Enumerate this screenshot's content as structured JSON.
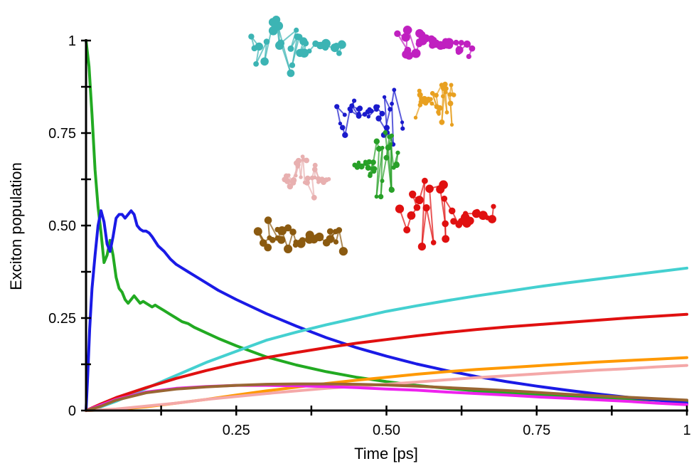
{
  "chart_data": {
    "type": "line",
    "title": "",
    "xlabel": "Time [ps]",
    "ylabel": "Exciton population",
    "xlim": [
      0,
      1
    ],
    "ylim": [
      0,
      1
    ],
    "xticks": [
      {
        "value": 0.25,
        "label": "0.25"
      },
      {
        "value": 0.5,
        "label": "0.50"
      },
      {
        "value": 0.75,
        "label": "0.75"
      },
      {
        "value": 1.0,
        "label": "1"
      }
    ],
    "yticks": [
      {
        "value": 0,
        "label": "0"
      },
      {
        "value": 0.25,
        "label": "0.25"
      },
      {
        "value": 0.5,
        "label": "0.50"
      },
      {
        "value": 0.75,
        "label": "0.75"
      },
      {
        "value": 1,
        "label": "1"
      }
    ],
    "grid": false,
    "legend": "none",
    "series": [
      {
        "color": "#22aa22",
        "x": [
          0,
          0.005,
          0.01,
          0.015,
          0.02,
          0.025,
          0.03,
          0.035,
          0.04,
          0.045,
          0.05,
          0.055,
          0.06,
          0.065,
          0.07,
          0.075,
          0.08,
          0.085,
          0.09,
          0.095,
          0.1,
          0.105,
          0.11,
          0.115,
          0.12,
          0.13,
          0.14,
          0.15,
          0.16,
          0.17,
          0.18,
          0.2,
          0.22,
          0.25,
          0.3,
          0.35,
          0.4,
          0.45,
          0.5,
          0.55,
          0.6,
          0.65,
          0.7,
          0.75,
          0.8,
          0.85,
          0.9,
          0.95,
          1.0
        ],
        "y": [
          1.0,
          0.93,
          0.8,
          0.65,
          0.55,
          0.48,
          0.4,
          0.42,
          0.46,
          0.42,
          0.36,
          0.33,
          0.32,
          0.3,
          0.29,
          0.3,
          0.31,
          0.3,
          0.29,
          0.295,
          0.29,
          0.285,
          0.28,
          0.285,
          0.28,
          0.27,
          0.26,
          0.25,
          0.24,
          0.235,
          0.225,
          0.21,
          0.195,
          0.175,
          0.145,
          0.123,
          0.105,
          0.09,
          0.078,
          0.068,
          0.06,
          0.053,
          0.047,
          0.042,
          0.038,
          0.034,
          0.031,
          0.028,
          0.025
        ]
      },
      {
        "color": "#1a1ae6",
        "x": [
          0,
          0.003,
          0.006,
          0.01,
          0.015,
          0.02,
          0.025,
          0.03,
          0.035,
          0.04,
          0.045,
          0.05,
          0.055,
          0.06,
          0.065,
          0.07,
          0.075,
          0.08,
          0.085,
          0.09,
          0.095,
          0.1,
          0.105,
          0.11,
          0.12,
          0.13,
          0.14,
          0.15,
          0.16,
          0.17,
          0.18,
          0.2,
          0.22,
          0.25,
          0.3,
          0.35,
          0.4,
          0.45,
          0.5,
          0.55,
          0.6,
          0.65,
          0.7,
          0.75,
          0.8,
          0.85,
          0.9,
          0.95,
          1.0
        ],
        "y": [
          0,
          0.1,
          0.22,
          0.33,
          0.42,
          0.5,
          0.54,
          0.51,
          0.45,
          0.43,
          0.47,
          0.52,
          0.53,
          0.53,
          0.52,
          0.53,
          0.54,
          0.53,
          0.5,
          0.49,
          0.485,
          0.485,
          0.48,
          0.47,
          0.445,
          0.43,
          0.41,
          0.395,
          0.385,
          0.375,
          0.365,
          0.345,
          0.325,
          0.3,
          0.262,
          0.228,
          0.197,
          0.17,
          0.147,
          0.126,
          0.108,
          0.092,
          0.078,
          0.066,
          0.055,
          0.045,
          0.036,
          0.028,
          0.02
        ]
      },
      {
        "color": "#44d0d0",
        "x": [
          0,
          0.025,
          0.05,
          0.1,
          0.15,
          0.2,
          0.25,
          0.3,
          0.35,
          0.4,
          0.45,
          0.5,
          0.55,
          0.6,
          0.65,
          0.7,
          0.75,
          0.8,
          0.85,
          0.9,
          0.95,
          1.0
        ],
        "y": [
          0,
          0.01,
          0.025,
          0.06,
          0.095,
          0.13,
          0.16,
          0.19,
          0.212,
          0.232,
          0.25,
          0.268,
          0.283,
          0.297,
          0.31,
          0.322,
          0.334,
          0.345,
          0.355,
          0.365,
          0.375,
          0.385
        ]
      },
      {
        "color": "#e01010",
        "x": [
          0,
          0.025,
          0.05,
          0.1,
          0.15,
          0.2,
          0.25,
          0.3,
          0.35,
          0.4,
          0.45,
          0.5,
          0.55,
          0.6,
          0.65,
          0.7,
          0.75,
          0.8,
          0.85,
          0.9,
          0.95,
          1.0
        ],
        "y": [
          0,
          0.018,
          0.035,
          0.062,
          0.087,
          0.108,
          0.127,
          0.143,
          0.157,
          0.17,
          0.182,
          0.192,
          0.202,
          0.211,
          0.219,
          0.226,
          0.232,
          0.238,
          0.244,
          0.25,
          0.255,
          0.26
        ]
      },
      {
        "color": "#ff9900",
        "x": [
          0,
          0.05,
          0.1,
          0.15,
          0.2,
          0.25,
          0.3,
          0.35,
          0.4,
          0.45,
          0.5,
          0.55,
          0.6,
          0.65,
          0.7,
          0.75,
          0.8,
          0.85,
          0.9,
          0.95,
          1.0
        ],
        "y": [
          0,
          0.003,
          0.01,
          0.02,
          0.03,
          0.042,
          0.053,
          0.063,
          0.073,
          0.082,
          0.09,
          0.098,
          0.105,
          0.111,
          0.116,
          0.121,
          0.126,
          0.131,
          0.135,
          0.139,
          0.143
        ]
      },
      {
        "color": "#f4a8a8",
        "x": [
          0,
          0.05,
          0.1,
          0.15,
          0.2,
          0.25,
          0.3,
          0.35,
          0.4,
          0.45,
          0.5,
          0.55,
          0.6,
          0.65,
          0.7,
          0.75,
          0.8,
          0.85,
          0.9,
          0.95,
          1.0
        ],
        "y": [
          0,
          0.004,
          0.012,
          0.02,
          0.03,
          0.038,
          0.046,
          0.053,
          0.06,
          0.066,
          0.071,
          0.077,
          0.083,
          0.089,
          0.094,
          0.099,
          0.104,
          0.109,
          0.113,
          0.118,
          0.122
        ]
      },
      {
        "color": "#ee22ee",
        "x": [
          0,
          0.025,
          0.05,
          0.1,
          0.15,
          0.2,
          0.25,
          0.3,
          0.35,
          0.4,
          0.45,
          0.5,
          0.55,
          0.6,
          0.65,
          0.7,
          0.75,
          0.8,
          0.85,
          0.9,
          0.95,
          1.0
        ],
        "y": [
          0,
          0.015,
          0.03,
          0.05,
          0.06,
          0.065,
          0.068,
          0.068,
          0.067,
          0.065,
          0.062,
          0.058,
          0.055,
          0.05,
          0.046,
          0.042,
          0.037,
          0.033,
          0.029,
          0.025,
          0.02,
          0.016
        ]
      },
      {
        "color": "#996633",
        "x": [
          0,
          0.025,
          0.05,
          0.1,
          0.15,
          0.2,
          0.25,
          0.3,
          0.35,
          0.4,
          0.45,
          0.5,
          0.55,
          0.6,
          0.65,
          0.7,
          0.75,
          0.8,
          0.85,
          0.9,
          0.95,
          1.0
        ],
        "y": [
          0,
          0.012,
          0.028,
          0.048,
          0.058,
          0.064,
          0.068,
          0.071,
          0.072,
          0.072,
          0.071,
          0.069,
          0.066,
          0.062,
          0.058,
          0.054,
          0.049,
          0.044,
          0.04,
          0.036,
          0.032,
          0.028
        ]
      }
    ],
    "inset_molecules": [
      {
        "name": "cyan-molecule",
        "color": "#3cb4b4"
      },
      {
        "name": "magenta-molecule",
        "color": "#c020c0"
      },
      {
        "name": "blue-molecule",
        "color": "#1a1acc"
      },
      {
        "name": "orange-molecule",
        "color": "#e8a020"
      },
      {
        "name": "green-molecule",
        "color": "#28a028"
      },
      {
        "name": "pink-molecule",
        "color": "#e8b0b0"
      },
      {
        "name": "red-molecule",
        "color": "#e01010"
      },
      {
        "name": "brown-molecule",
        "color": "#8b5a10"
      }
    ]
  }
}
